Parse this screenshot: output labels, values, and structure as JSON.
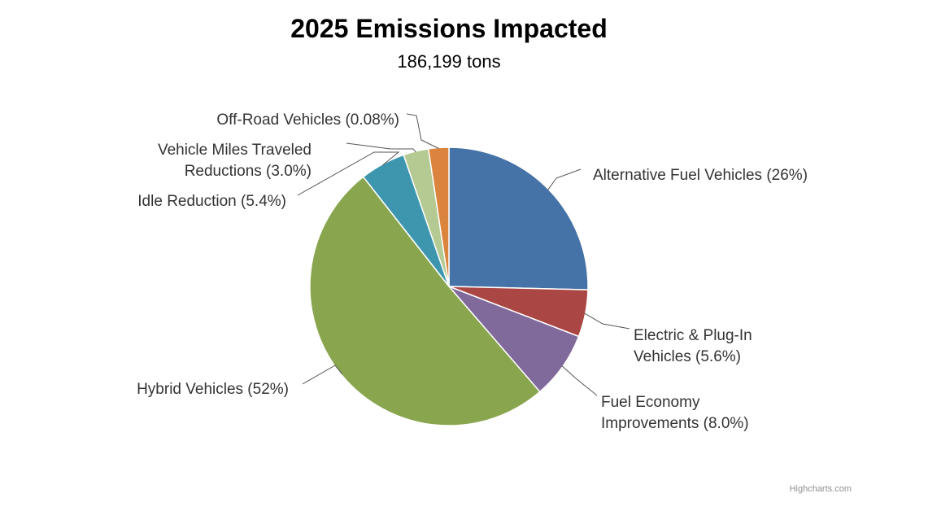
{
  "chart_data": {
    "type": "pie",
    "title": "2025 Emissions Impacted",
    "subtitle": "186,199 tons",
    "slices": [
      {
        "name": "Alternative Fuel Vehicles",
        "value": 26,
        "label": "Alternative Fuel Vehicles (26%)",
        "color": "#4572A7"
      },
      {
        "name": "Electric & Plug-In Vehicles",
        "value": 5.6,
        "label_lines": [
          "Electric & Plug-In",
          "Vehicles (5.6%)"
        ],
        "color": "#AA4643"
      },
      {
        "name": "Fuel Economy Improvements",
        "value": 8.0,
        "label_lines": [
          "Fuel Economy",
          "Improvements (8.0%)"
        ],
        "color": "#80699B"
      },
      {
        "name": "Hybrid Vehicles",
        "value": 52,
        "label": "Hybrid Vehicles (52%)",
        "color": "#89A54E"
      },
      {
        "name": "Idle Reduction",
        "value": 5.4,
        "label": "Idle Reduction (5.4%)",
        "color": "#3D96AE"
      },
      {
        "name": "Vehicle Miles Traveled Reductions",
        "value": 3.0,
        "label_lines": [
          "Vehicle Miles Traveled",
          "Reductions (3.0%)"
        ],
        "color": "#B5CA92"
      },
      {
        "name": "Off-Road Vehicles",
        "value": 0.08,
        "label": "Off-Road Vehicles (0.08%)",
        "color": "#DB843D"
      }
    ],
    "legend": "none",
    "credits": "Highcharts.com"
  }
}
